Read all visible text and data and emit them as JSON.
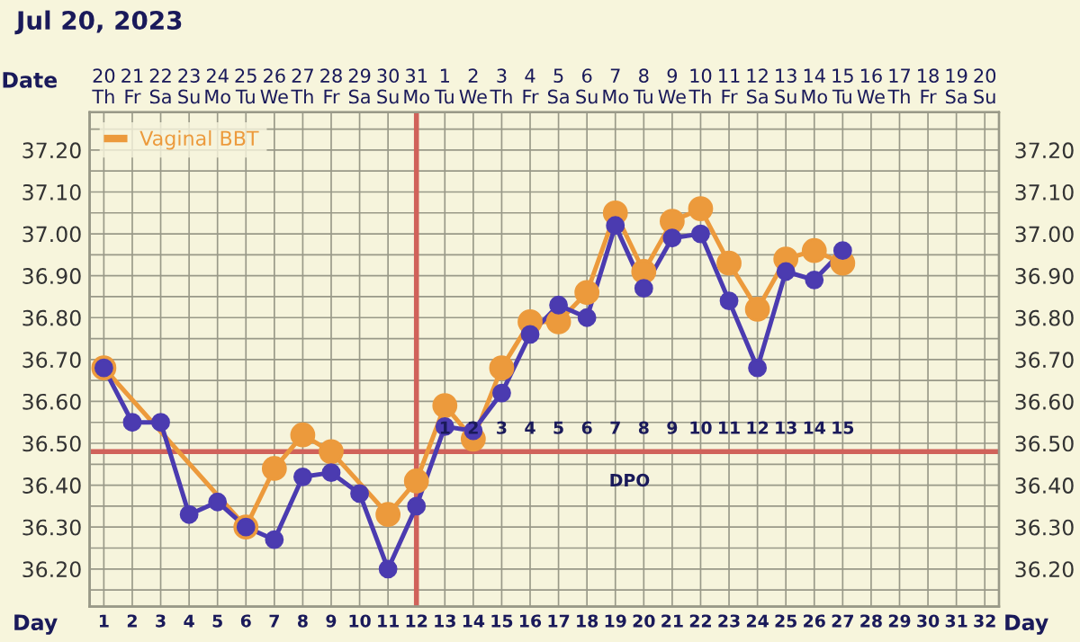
{
  "chart_data": {
    "type": "line",
    "title": "Jul 20, 2023",
    "xlabel": "Day",
    "x2label": "Date",
    "x": [
      1,
      2,
      3,
      4,
      5,
      6,
      7,
      8,
      9,
      10,
      11,
      12,
      13,
      14,
      15,
      16,
      17,
      18,
      19,
      20,
      21,
      22,
      23,
      24,
      25,
      26,
      27
    ],
    "series": [
      {
        "color": "#ec9a3c",
        "values": [
          36.68,
          null,
          null,
          null,
          null,
          36.3,
          36.44,
          36.52,
          36.48,
          null,
          36.33,
          36.41,
          36.59,
          36.51,
          36.68,
          36.79,
          36.79,
          36.86,
          37.05,
          36.91,
          37.03,
          37.06,
          36.93,
          36.82,
          36.94,
          36.96,
          36.93
        ],
        "name": "Vaginal BBT"
      },
      {
        "color": "#4b3bb0",
        "values": [
          36.68,
          36.55,
          36.55,
          36.33,
          36.36,
          36.3,
          36.27,
          36.42,
          36.43,
          36.38,
          36.2,
          36.35,
          36.54,
          36.53,
          36.62,
          36.76,
          36.83,
          36.8,
          37.02,
          36.87,
          36.99,
          37.0,
          36.84,
          36.68,
          36.91,
          36.89,
          36.96
        ]
      }
    ],
    "xlim": [
      0.5,
      32.5
    ],
    "xticks": [
      1,
      2,
      3,
      4,
      5,
      6,
      7,
      8,
      9,
      10,
      11,
      12,
      13,
      14,
      15,
      16,
      17,
      18,
      19,
      20,
      21,
      22,
      23,
      24,
      25,
      26,
      27,
      28,
      29,
      30,
      31,
      32
    ],
    "x2lim": [
      "2023-07-19T12:00",
      "2023-08-20T12:00"
    ],
    "x2ticks": [
      {
        "value": "2023-07-20",
        "label": "20\nTh"
      },
      {
        "value": "2023-07-21",
        "label": "21\nFr"
      },
      {
        "value": "2023-07-22",
        "label": "22\nSa"
      },
      {
        "value": "2023-07-23",
        "label": "23\nSu"
      },
      {
        "value": "2023-07-24",
        "label": "24\nMo"
      },
      {
        "value": "2023-07-25",
        "label": "25\nTu"
      },
      {
        "value": "2023-07-26",
        "label": "26\nWe"
      },
      {
        "value": "2023-07-27",
        "label": "27\nTh"
      },
      {
        "value": "2023-07-28",
        "label": "28\nFr"
      },
      {
        "value": "2023-07-29",
        "label": "29\nSa"
      },
      {
        "value": "2023-07-30",
        "label": "30\nSu"
      },
      {
        "value": "2023-07-31",
        "label": "31\nMo"
      },
      {
        "value": "2023-08-01",
        "label": "1\nTu"
      },
      {
        "value": "2023-08-02",
        "label": "2\nWe"
      },
      {
        "value": "2023-08-03",
        "label": "3\nTh"
      },
      {
        "value": "2023-08-04",
        "label": "4\nFr"
      },
      {
        "value": "2023-08-05",
        "label": "5\nSa"
      },
      {
        "value": "2023-08-06",
        "label": "6\nSu"
      },
      {
        "value": "2023-08-07",
        "label": "7\nMo"
      },
      {
        "value": "2023-08-08",
        "label": "8\nTu"
      },
      {
        "value": "2023-08-09",
        "label": "9\nWe"
      },
      {
        "value": "2023-08-10",
        "label": "10\nTh"
      },
      {
        "value": "2023-08-11",
        "label": "11\nFr"
      },
      {
        "value": "2023-08-12",
        "label": "12\nSa"
      },
      {
        "value": "2023-08-13",
        "label": "13\nSu"
      },
      {
        "value": "2023-08-14",
        "label": "14\nMo"
      },
      {
        "value": "2023-08-15",
        "label": "15\nTu"
      },
      {
        "value": "2023-08-16",
        "label": "16\nWe"
      },
      {
        "value": "2023-08-17",
        "label": "17\nTh"
      },
      {
        "value": "2023-08-18",
        "label": "18\nFr"
      },
      {
        "value": "2023-08-19",
        "label": "19\nSa"
      },
      {
        "value": "2023-08-20",
        "label": "20\nSu"
      }
    ],
    "ylim": [
      36.11,
      37.29
    ],
    "yticks": [
      {
        "value": 36.15,
        "label": null
      },
      {
        "value": 36.2,
        "label": "36.20"
      },
      {
        "value": 36.25,
        "label": null
      },
      {
        "value": 36.3,
        "label": "36.30"
      },
      {
        "value": 36.35,
        "label": null
      },
      {
        "value": 36.4,
        "label": "36.40"
      },
      {
        "value": 36.45,
        "label": null
      },
      {
        "value": 36.5,
        "label": "36.50"
      },
      {
        "value": 36.55,
        "label": null
      },
      {
        "value": 36.6,
        "label": "36.60"
      },
      {
        "value": 36.65,
        "label": null
      },
      {
        "value": 36.7,
        "label": "36.70"
      },
      {
        "value": 36.75,
        "label": null
      },
      {
        "value": 36.8,
        "label": "36.80"
      },
      {
        "value": 36.85,
        "label": null
      },
      {
        "value": 36.9,
        "label": "36.90"
      },
      {
        "value": 36.95,
        "label": null
      },
      {
        "value": 37.0,
        "label": "37.00"
      },
      {
        "value": 37.05,
        "label": null
      },
      {
        "value": 37.1,
        "label": "37.10"
      },
      {
        "value": 37.15,
        "label": null
      },
      {
        "value": 37.2,
        "label": "37.20"
      },
      {
        "value": 37.25,
        "label": null
      }
    ],
    "y2lim": [
      36.11,
      37.29
    ],
    "y2ticks": [
      {
        "value": 36.2,
        "label": "36.20"
      },
      {
        "value": 36.3,
        "label": "36.30"
      },
      {
        "value": 36.4,
        "label": "36.40"
      },
      {
        "value": 36.5,
        "label": "36.50"
      },
      {
        "value": 36.6,
        "label": "36.60"
      },
      {
        "value": 36.7,
        "label": "36.70"
      },
      {
        "value": 36.8,
        "label": "36.80"
      },
      {
        "value": 36.9,
        "label": "36.90"
      },
      {
        "value": 37.0,
        "label": "37.00"
      },
      {
        "value": 37.1,
        "label": "37.10"
      },
      {
        "value": 37.2,
        "label": "37.20"
      }
    ],
    "ref_lines": [
      {
        "axis": "y",
        "value": 36.48,
        "color": "#d0625a"
      },
      {
        "axis": "x",
        "value": 12,
        "color": "#d0625a"
      }
    ],
    "annotations": [
      {
        "text": "1",
        "x": 13,
        "y": 36.48
      },
      {
        "text": "2",
        "x": 14,
        "y": 36.48
      },
      {
        "text": "3",
        "x": 15,
        "y": 36.48
      },
      {
        "text": "4",
        "x": 16,
        "y": 36.48
      },
      {
        "text": "5",
        "x": 17,
        "y": 36.48
      },
      {
        "text": "6",
        "x": 18,
        "y": 36.48
      },
      {
        "text": "7",
        "x": 19,
        "y": 36.48
      },
      {
        "text": "8",
        "x": 20,
        "y": 36.48
      },
      {
        "text": "9",
        "x": 21,
        "y": 36.48
      },
      {
        "text": "10",
        "x": 22,
        "y": 36.48
      },
      {
        "text": "11",
        "x": 23,
        "y": 36.48
      },
      {
        "text": "12",
        "x": 24,
        "y": 36.48
      },
      {
        "text": "13",
        "x": 25,
        "y": 36.48
      },
      {
        "text": "14",
        "x": 26,
        "y": 36.48
      },
      {
        "text": "15",
        "x": 27,
        "y": 36.48
      },
      {
        "text": "DPO",
        "x": 19.5,
        "y": 36.48
      },
      "Day"
    ],
    "grid": true,
    "legend": "top left",
    "marker": "circle",
    "line_style": "solid"
  }
}
